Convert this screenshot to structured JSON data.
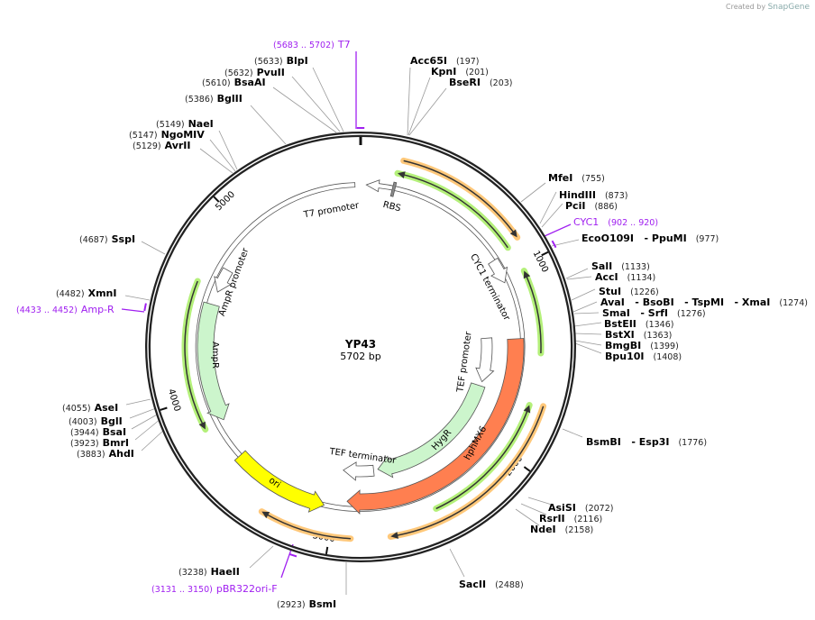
{
  "credit": {
    "prefix": "Created by",
    "brand": "SnapGene"
  },
  "plasmid": {
    "name": "YP43",
    "length": "5702 bp"
  },
  "ticks": [
    "1000",
    "2000",
    "3000",
    "4000",
    "5000"
  ],
  "features": {
    "t7_promoter": "T7 promoter",
    "rbs": "RBS",
    "cyc1_terminator": "CYC1 terminator",
    "tef_promoter": "TEF promoter",
    "hygr": "HygR",
    "hphmx6": "hphMX6",
    "tef_terminator": "TEF terminator",
    "ori": "ori",
    "ampr": "AmpR",
    "ampr_promoter": "AmpR promoter"
  },
  "enzymes": [
    {
      "name": "BlpI",
      "pos": "(5633)"
    },
    {
      "name": "PvuII",
      "pos": "(5632)"
    },
    {
      "name": "BsaAI",
      "pos": "(5610)"
    },
    {
      "name": "BglII",
      "pos": "(5386)"
    },
    {
      "name": "NaeI",
      "pos": "(5149)"
    },
    {
      "name": "NgoMIV",
      "pos": "(5147)"
    },
    {
      "name": "AvrII",
      "pos": "(5129)"
    },
    {
      "name": "SspI",
      "pos": "(4687)"
    },
    {
      "name": "XmnI",
      "pos": "(4482)"
    },
    {
      "name": "AseI",
      "pos": "(4055)"
    },
    {
      "name": "BglI",
      "pos": "(4003)"
    },
    {
      "name": "BsaI",
      "pos": "(3944)"
    },
    {
      "name": "BmrI",
      "pos": "(3923)"
    },
    {
      "name": "AhdI",
      "pos": "(3883)"
    },
    {
      "name": "HaeII",
      "pos": "(3238)"
    },
    {
      "name": "BsmI",
      "pos": "(2923)"
    },
    {
      "name": "SacII",
      "pos": "(2488)"
    },
    {
      "name": "NdeI",
      "pos": "(2158)"
    },
    {
      "name": "RsrII",
      "pos": "(2116)"
    },
    {
      "name": "AsiSI",
      "pos": "(2072)"
    },
    {
      "name": "BsmBI   - Esp3I",
      "pos": "(1776)"
    },
    {
      "name": "Acc65I",
      "pos": "(197)"
    },
    {
      "name": "KpnI",
      "pos": "(201)"
    },
    {
      "name": "BseRI",
      "pos": "(203)"
    },
    {
      "name": "MfeI",
      "pos": "(755)"
    },
    {
      "name": "HindIII",
      "pos": "(873)"
    },
    {
      "name": "PciI",
      "pos": "(886)"
    },
    {
      "name": "EcoO109I   - PpuMI",
      "pos": "(977)"
    },
    {
      "name": "SalI",
      "pos": "(1133)"
    },
    {
      "name": "AccI",
      "pos": "(1134)"
    },
    {
      "name": "StuI",
      "pos": "(1226)"
    },
    {
      "name": "AvaI   - BsoBI   - TspMI   - XmaI",
      "pos": "(1274)"
    },
    {
      "name": "SmaI   - SrfI",
      "pos": "(1276)"
    },
    {
      "name": "BstEII",
      "pos": "(1346)"
    },
    {
      "name": "BstXI",
      "pos": "(1363)"
    },
    {
      "name": "BmgBI",
      "pos": "(1399)"
    },
    {
      "name": "Bpu10I",
      "pos": "(1408)"
    }
  ],
  "primers": [
    {
      "name": "T7",
      "pos": "(5683 .. 5702)"
    },
    {
      "name": "CYC1",
      "pos": "(902 .. 920)"
    },
    {
      "name": "Amp-R",
      "pos": "(4433 .. 4452)"
    },
    {
      "name": "pBR322ori-F",
      "pos": "(3131 .. 3150)"
    }
  ],
  "colors": {
    "backbone": "#222222",
    "primer": "#a020f0",
    "hphmx6": "#ff7f50",
    "hygr": "#ccf5cc",
    "ampr": "#ccf5cc",
    "ori": "#ffff00",
    "primer_glow_orange": "#ffc87a",
    "primer_glow_green": "#b4f07a"
  }
}
